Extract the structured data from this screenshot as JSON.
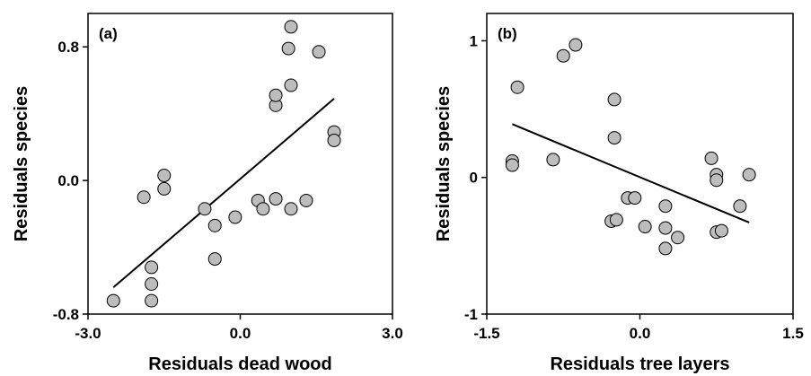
{
  "chart_data": [
    {
      "type": "scatter",
      "panel_label": "(a)",
      "xlabel": "Residuals dead wood",
      "ylabel": "Residuals species",
      "xlim": [
        -3.0,
        3.0
      ],
      "ylim": [
        -0.8,
        1.0
      ],
      "xticks": [
        -3.0,
        0.0,
        3.0
      ],
      "xtick_labels": [
        "-3.0",
        "0.0",
        "3.0"
      ],
      "yticks": [
        -0.8,
        0.0,
        0.8
      ],
      "ytick_labels": [
        "-0.8",
        "0.0",
        "0.8"
      ],
      "grid": false,
      "legend": "none",
      "marker_color": "#bdbdbd",
      "points": [
        {
          "x": -2.5,
          "y": -0.72
        },
        {
          "x": -1.9,
          "y": -0.1
        },
        {
          "x": -1.75,
          "y": -0.52
        },
        {
          "x": -1.75,
          "y": -0.62
        },
        {
          "x": -1.75,
          "y": -0.72
        },
        {
          "x": -1.5,
          "y": 0.03
        },
        {
          "x": -1.5,
          "y": -0.05
        },
        {
          "x": -0.7,
          "y": -0.17
        },
        {
          "x": -0.5,
          "y": -0.27
        },
        {
          "x": -0.5,
          "y": -0.47
        },
        {
          "x": -0.1,
          "y": -0.22
        },
        {
          "x": 0.35,
          "y": -0.12
        },
        {
          "x": 0.45,
          "y": -0.17
        },
        {
          "x": 0.7,
          "y": -0.11
        },
        {
          "x": 0.7,
          "y": 0.45
        },
        {
          "x": 0.7,
          "y": 0.51
        },
        {
          "x": 1.0,
          "y": 0.57
        },
        {
          "x": 0.95,
          "y": 0.79
        },
        {
          "x": 1.0,
          "y": 0.92
        },
        {
          "x": 1.0,
          "y": -0.17
        },
        {
          "x": 1.3,
          "y": -0.12
        },
        {
          "x": 1.55,
          "y": 0.77
        },
        {
          "x": 1.85,
          "y": 0.29
        },
        {
          "x": 1.85,
          "y": 0.24
        }
      ],
      "fit_line": [
        {
          "x": -2.5,
          "y": -0.64
        },
        {
          "x": 1.85,
          "y": 0.49
        }
      ]
    },
    {
      "type": "scatter",
      "panel_label": "(b)",
      "xlabel": "Residuals tree layers",
      "ylabel": "Residuals species",
      "xlim": [
        -1.5,
        1.5
      ],
      "ylim": [
        -1.0,
        1.2
      ],
      "xticks": [
        -1.5,
        0.0,
        1.5
      ],
      "xtick_labels": [
        "-1.5",
        "0.0",
        "1.5"
      ],
      "yticks": [
        -1,
        0,
        1
      ],
      "ytick_labels": [
        "-1",
        "0",
        "1"
      ],
      "grid": false,
      "legend": "none",
      "marker_color": "#bdbdbd",
      "points": [
        {
          "x": -1.25,
          "y": 0.12
        },
        {
          "x": -1.25,
          "y": 0.09
        },
        {
          "x": -1.2,
          "y": 0.66
        },
        {
          "x": -0.85,
          "y": 0.13
        },
        {
          "x": -0.75,
          "y": 0.89
        },
        {
          "x": -0.63,
          "y": 0.97
        },
        {
          "x": -0.25,
          "y": 0.57
        },
        {
          "x": -0.25,
          "y": 0.29
        },
        {
          "x": -0.28,
          "y": -0.32
        },
        {
          "x": -0.23,
          "y": -0.31
        },
        {
          "x": -0.12,
          "y": -0.15
        },
        {
          "x": -0.05,
          "y": -0.15
        },
        {
          "x": 0.05,
          "y": -0.36
        },
        {
          "x": 0.25,
          "y": -0.21
        },
        {
          "x": 0.25,
          "y": -0.37
        },
        {
          "x": 0.25,
          "y": -0.52
        },
        {
          "x": 0.37,
          "y": -0.44
        },
        {
          "x": 0.7,
          "y": 0.14
        },
        {
          "x": 0.75,
          "y": 0.02
        },
        {
          "x": 0.75,
          "y": -0.02
        },
        {
          "x": 0.75,
          "y": -0.4
        },
        {
          "x": 0.8,
          "y": -0.39
        },
        {
          "x": 0.98,
          "y": -0.21
        },
        {
          "x": 1.07,
          "y": 0.02
        }
      ],
      "fit_line": [
        {
          "x": -1.25,
          "y": 0.39
        },
        {
          "x": 1.07,
          "y": -0.33
        }
      ]
    }
  ]
}
